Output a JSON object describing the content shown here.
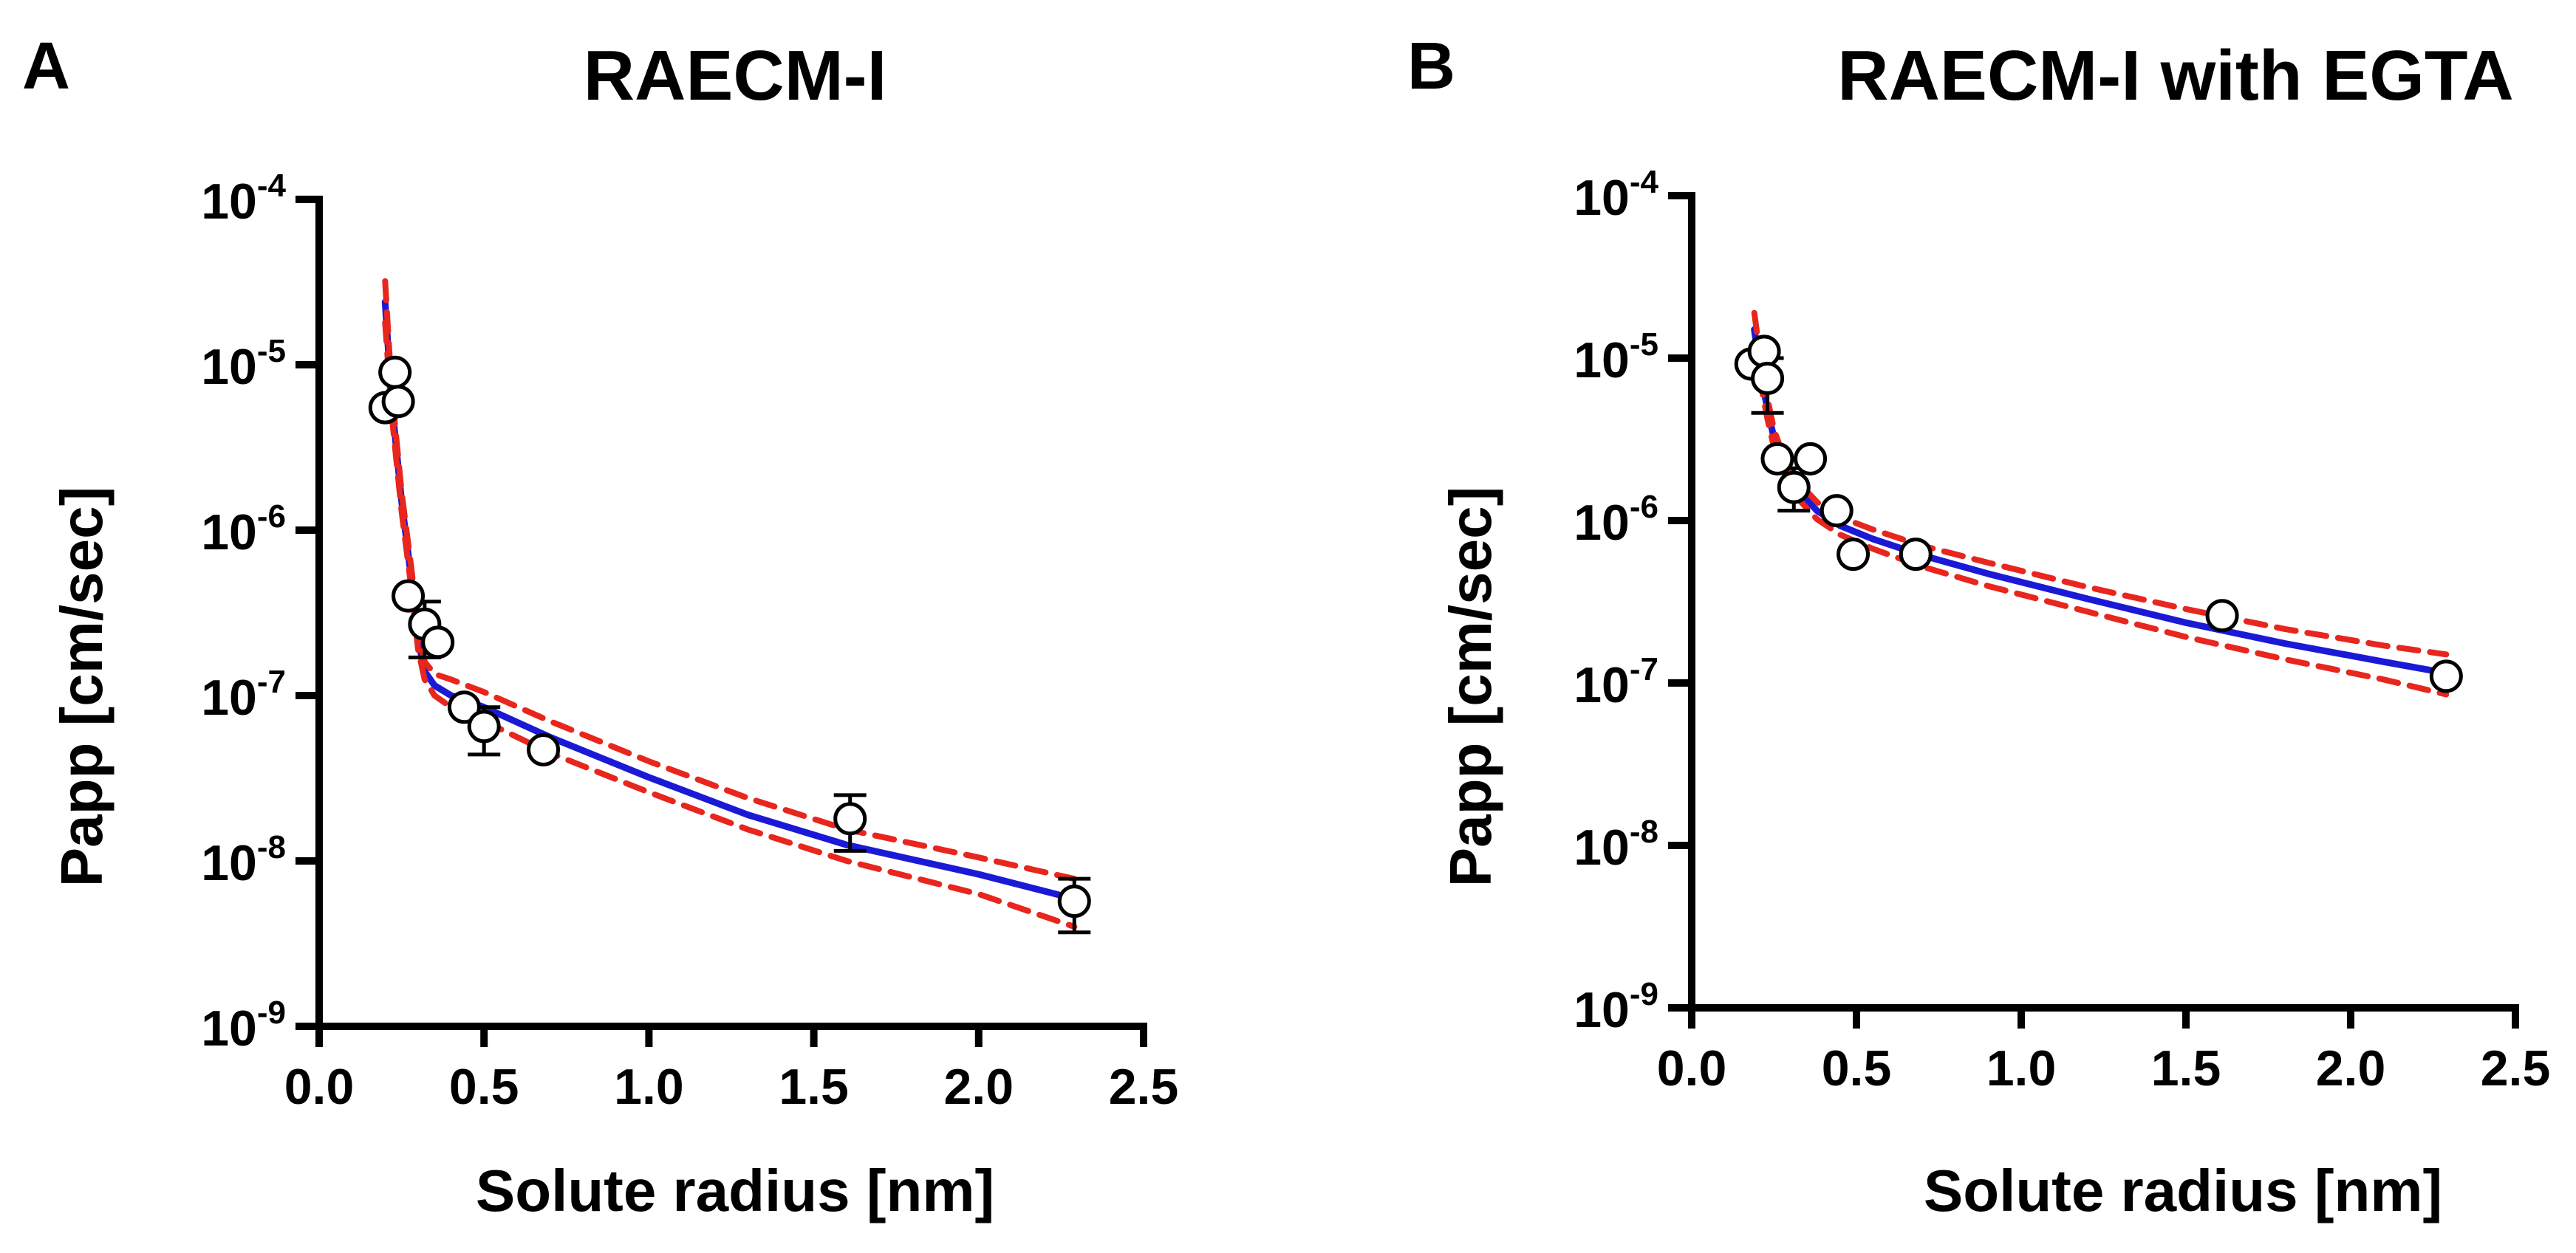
{
  "chart_data": [
    {
      "type": "scatter",
      "panel_label": "A",
      "title": "RAECM-I",
      "xlabel": "Solute radius [nm]",
      "ylabel": "Papp [cm/sec]",
      "xscale": "linear",
      "yscale": "log",
      "xlim": [
        0,
        2.5
      ],
      "ylim_exponents": [
        -9,
        -4
      ],
      "x_ticks": [
        "0.0",
        "0.5",
        "1.0",
        "1.5",
        "2.0",
        "2.5"
      ],
      "y_ticks": [
        {
          "base": "10",
          "exp": "-4"
        },
        {
          "base": "10",
          "exp": "-5"
        },
        {
          "base": "10",
          "exp": "-6"
        },
        {
          "base": "10",
          "exp": "-7"
        },
        {
          "base": "10",
          "exp": "-8"
        },
        {
          "base": "10",
          "exp": "-9"
        }
      ],
      "grid": false,
      "colors": {
        "fit": "#1a1ad6",
        "confidence": "#e8261e",
        "marker_edge": "#000000",
        "marker_fill": "#ffffff"
      },
      "points": [
        {
          "x": 0.2,
          "y": 5.5e-06
        },
        {
          "x": 0.23,
          "y": 9e-06
        },
        {
          "x": 0.24,
          "y": 6e-06
        },
        {
          "x": 0.27,
          "y": 4e-07
        },
        {
          "x": 0.32,
          "y": 2.7e-07,
          "err_low": 1.7e-07,
          "err_high": 3.7e-07
        },
        {
          "x": 0.36,
          "y": 2.1e-07
        },
        {
          "x": 0.44,
          "y": 8.5e-08
        },
        {
          "x": 0.5,
          "y": 6.5e-08,
          "err_low": 4.4e-08,
          "err_high": 8.5e-08
        },
        {
          "x": 0.68,
          "y": 4.7e-08
        },
        {
          "x": 1.61,
          "y": 1.8e-08,
          "err_low": 1.15e-08,
          "err_high": 2.5e-08
        },
        {
          "x": 2.29,
          "y": 5.7e-09,
          "err_low": 3.7e-09,
          "err_high": 7.8e-09
        }
      ],
      "series": [
        {
          "name": "fit",
          "x": [
            0.2,
            0.22,
            0.25,
            0.28,
            0.3,
            0.32,
            0.35,
            0.4,
            0.5,
            0.7,
            1.0,
            1.3,
            1.6,
            2.0,
            2.29
          ],
          "y": [
            2.4e-05,
            6e-06,
            1.5e-06,
            5e-07,
            2.2e-07,
            1.4e-07,
            1.15e-07,
            1e-07,
            8.5e-08,
            5.6e-08,
            3.2e-08,
            1.9e-08,
            1.25e-08,
            8.3e-09,
            5.9e-09
          ]
        },
        {
          "name": "upper 95% CI",
          "x": [
            0.2,
            0.22,
            0.25,
            0.28,
            0.3,
            0.32,
            0.35,
            0.4,
            0.5,
            0.7,
            1.0,
            1.3,
            1.6,
            2.0,
            2.29
          ],
          "y": [
            3.2e-05,
            7e-06,
            1.7e-06,
            5.8e-07,
            2.6e-07,
            1.6e-07,
            1.35e-07,
            1.25e-07,
            1.05e-07,
            7e-08,
            4e-08,
            2.4e-08,
            1.55e-08,
            1.05e-08,
            7.8e-09
          ]
        },
        {
          "name": "lower 95% CI",
          "x": [
            0.2,
            0.22,
            0.25,
            0.28,
            0.3,
            0.32,
            0.35,
            0.4,
            0.5,
            0.7,
            1.0,
            1.3,
            1.6,
            2.0,
            2.29
          ],
          "y": [
            1.8e-05,
            5e-06,
            1.3e-06,
            4.4e-07,
            1.9e-07,
            1.25e-07,
            1e-07,
            8.5e-08,
            7e-08,
            4.5e-08,
            2.6e-08,
            1.55e-08,
            1e-08,
            6.3e-09,
            4e-09
          ]
        }
      ]
    },
    {
      "type": "scatter",
      "panel_label": "B",
      "title": "RAECM-I with EGTA",
      "xlabel": "Solute radius [nm]",
      "ylabel": "Papp [cm/sec]",
      "xscale": "linear",
      "yscale": "log",
      "xlim": [
        0,
        2.5
      ],
      "ylim_exponents": [
        -9,
        -4
      ],
      "x_ticks": [
        "0.0",
        "0.5",
        "1.0",
        "1.5",
        "2.0",
        "2.5"
      ],
      "y_ticks": [
        {
          "base": "10",
          "exp": "-4"
        },
        {
          "base": "10",
          "exp": "-5"
        },
        {
          "base": "10",
          "exp": "-6"
        },
        {
          "base": "10",
          "exp": "-7"
        },
        {
          "base": "10",
          "exp": "-8"
        },
        {
          "base": "10",
          "exp": "-9"
        }
      ],
      "grid": false,
      "colors": {
        "fit": "#1a1ad6",
        "confidence": "#e8261e",
        "marker_edge": "#000000",
        "marker_fill": "#ffffff"
      },
      "points": [
        {
          "x": 0.18,
          "y": 9.2e-06
        },
        {
          "x": 0.22,
          "y": 1.1e-05
        },
        {
          "x": 0.23,
          "y": 7.5e-06,
          "err_low": 4.6e-06,
          "err_high": 1e-05
        },
        {
          "x": 0.26,
          "y": 2.4e-06
        },
        {
          "x": 0.31,
          "y": 1.6e-06,
          "err_low": 1.15e-06,
          "err_high": 2.1e-06
        },
        {
          "x": 0.36,
          "y": 2.4e-06
        },
        {
          "x": 0.44,
          "y": 1.15e-06
        },
        {
          "x": 0.49,
          "y": 6.2e-07
        },
        {
          "x": 0.68,
          "y": 6.2e-07
        },
        {
          "x": 1.61,
          "y": 2.6e-07
        },
        {
          "x": 2.29,
          "y": 1.1e-07
        }
      ],
      "series": [
        {
          "name": "fit",
          "x": [
            0.19,
            0.21,
            0.23,
            0.25,
            0.28,
            0.32,
            0.38,
            0.45,
            0.55,
            0.7,
            0.9,
            1.2,
            1.5,
            1.8,
            2.1,
            2.29
          ],
          "y": [
            1.5e-05,
            8e-06,
            4.8e-06,
            3.2e-06,
            2.2e-06,
            1.55e-06,
            1.15e-06,
            9.3e-07,
            7.7e-07,
            6.1e-07,
            4.7e-07,
            3.3e-07,
            2.35e-07,
            1.75e-07,
            1.35e-07,
            1.15e-07
          ]
        },
        {
          "name": "upper 95% CI",
          "x": [
            0.19,
            0.21,
            0.23,
            0.25,
            0.28,
            0.32,
            0.38,
            0.45,
            0.55,
            0.7,
            0.9,
            1.2,
            1.5,
            1.8,
            2.1,
            2.29
          ],
          "y": [
            1.9e-05,
            9.5e-06,
            5.6e-06,
            3.6e-06,
            2.45e-06,
            1.75e-06,
            1.3e-06,
            1.05e-06,
            8.8e-07,
            7e-07,
            5.5e-07,
            3.9e-07,
            2.85e-07,
            2.15e-07,
            1.7e-07,
            1.5e-07
          ]
        },
        {
          "name": "lower 95% CI",
          "x": [
            0.19,
            0.21,
            0.23,
            0.25,
            0.28,
            0.32,
            0.38,
            0.45,
            0.55,
            0.7,
            0.9,
            1.2,
            1.5,
            1.8,
            2.1,
            2.29
          ],
          "y": [
            1.2e-05,
            6.8e-06,
            4.2e-06,
            2.8e-06,
            1.95e-06,
            1.38e-06,
            1.02e-06,
            8.2e-07,
            6.7e-07,
            5.2e-07,
            3.95e-07,
            2.75e-07,
            1.92e-07,
            1.4e-07,
            1.05e-07,
            8.5e-08
          ]
        }
      ]
    }
  ]
}
